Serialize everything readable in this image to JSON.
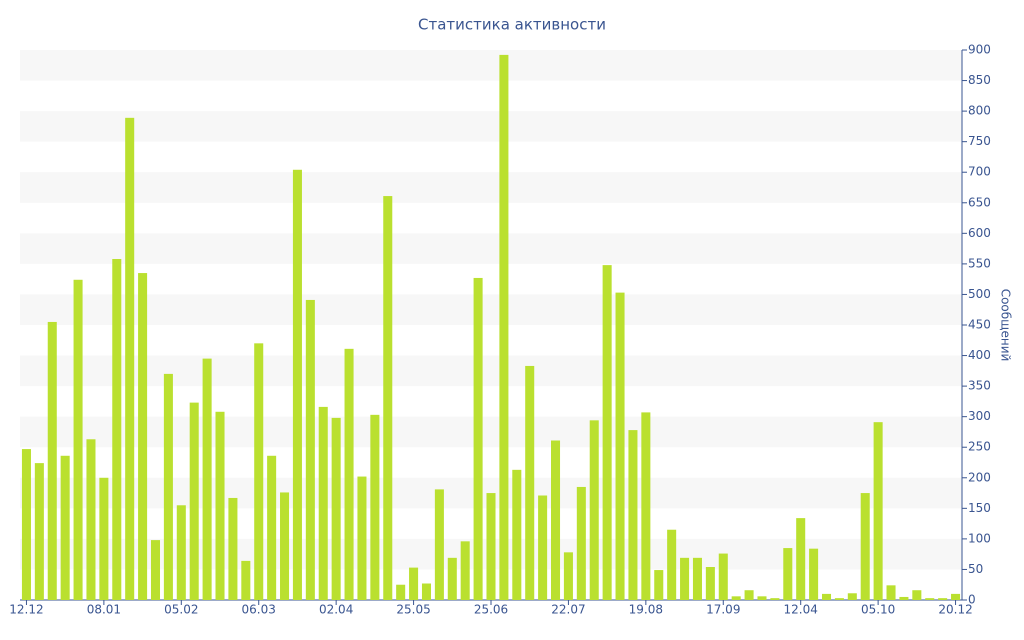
{
  "chart_data": {
    "type": "bar",
    "title": "Статистика активности",
    "y_label": "Сообщений",
    "categories": [
      "12.12",
      null,
      null,
      null,
      null,
      null,
      "08.01",
      null,
      null,
      null,
      null,
      null,
      "05.02",
      null,
      null,
      null,
      null,
      null,
      "06.03",
      null,
      null,
      null,
      null,
      null,
      "02.04",
      null,
      null,
      null,
      null,
      null,
      "25.05",
      null,
      null,
      null,
      null,
      null,
      "25.06",
      null,
      null,
      null,
      null,
      null,
      "22.07",
      null,
      null,
      null,
      null,
      null,
      "19.08",
      null,
      null,
      null,
      null,
      null,
      "17.09",
      null,
      null,
      null,
      null,
      null,
      "12.04",
      null,
      null,
      null,
      null,
      null,
      "05.10",
      null,
      null,
      null,
      null,
      null,
      "20.12"
    ],
    "values": [
      247,
      224,
      455,
      236,
      524,
      263,
      200,
      558,
      789,
      535,
      98,
      370,
      155,
      323,
      395,
      308,
      167,
      64,
      420,
      236,
      176,
      704,
      491,
      316,
      298,
      411,
      202,
      303,
      661,
      25,
      53,
      27,
      181,
      69,
      96,
      527,
      175,
      892,
      213,
      383,
      171,
      261,
      78,
      185,
      294,
      548,
      503,
      278,
      307,
      49,
      115,
      69,
      69,
      54,
      76,
      6,
      16,
      6,
      3,
      85,
      134,
      84,
      10,
      3,
      11,
      175,
      291,
      24,
      5,
      16,
      3,
      3,
      10
    ],
    "color": "#bae02f",
    "ylim": [
      0,
      900
    ],
    "yticks": [
      0,
      50,
      100,
      150,
      200,
      250,
      300,
      350,
      400,
      450,
      500,
      550,
      600,
      650,
      700,
      750,
      800,
      850,
      900
    ],
    "grid": true,
    "y_axis_side": "right"
  }
}
